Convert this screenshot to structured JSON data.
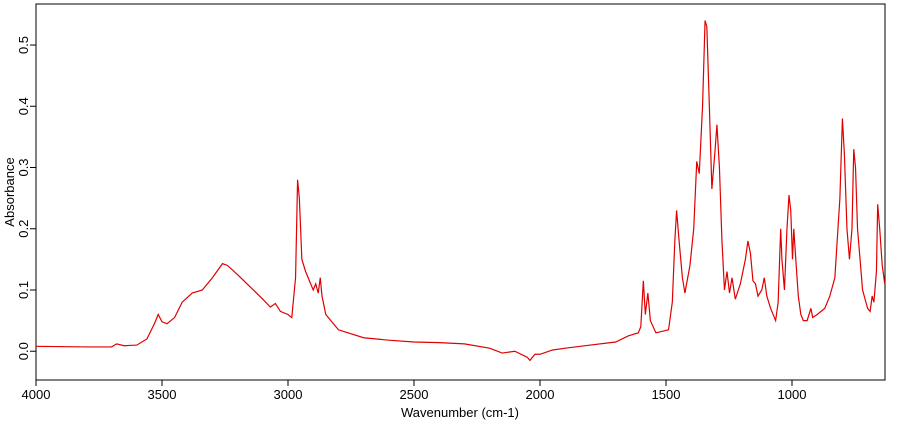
{
  "chart_data": {
    "type": "line",
    "xlabel": "Wavenumber (cm-1)",
    "ylabel": "Absorbance",
    "color": "#e00000",
    "xlim": [
      4000,
      631
    ],
    "ylim": [
      -0.047,
      0.567
    ],
    "xticks": [
      4000,
      3500,
      3000,
      2500,
      2000,
      1500,
      1000
    ],
    "yticks": [
      {
        "value": 0,
        "label": "0.0"
      },
      0.1,
      0.2,
      0.3,
      0.4,
      0.5
    ],
    "x": [
      4000,
      3800,
      3700,
      3680,
      3650,
      3600,
      3560,
      3530,
      3515,
      3500,
      3480,
      3450,
      3420,
      3380,
      3340,
      3300,
      3260,
      3240,
      3200,
      3150,
      3100,
      3070,
      3050,
      3030,
      3000,
      2985,
      2970,
      2962,
      2955,
      2945,
      2930,
      2920,
      2900,
      2890,
      2880,
      2872,
      2865,
      2850,
      2800,
      2700,
      2600,
      2500,
      2400,
      2300,
      2200,
      2150,
      2100,
      2050,
      2040,
      2020,
      2000,
      1950,
      1900,
      1800,
      1700,
      1650,
      1610,
      1600,
      1590,
      1582,
      1572,
      1562,
      1540,
      1490,
      1475,
      1465,
      1458,
      1448,
      1435,
      1425,
      1405,
      1390,
      1378,
      1368,
      1355,
      1345,
      1338,
      1328,
      1318,
      1305,
      1298,
      1288,
      1278,
      1268,
      1258,
      1248,
      1238,
      1225,
      1205,
      1185,
      1175,
      1165,
      1155,
      1145,
      1135,
      1120,
      1110,
      1100,
      1085,
      1065,
      1055,
      1045,
      1040,
      1030,
      1020,
      1012,
      1005,
      998,
      993,
      985,
      975,
      965,
      955,
      940,
      925,
      918,
      900,
      870,
      850,
      830,
      810,
      800,
      792,
      782,
      772,
      762,
      755,
      748,
      740,
      720,
      700,
      690,
      682,
      675,
      665,
      660,
      652,
      642,
      632
    ],
    "values": [
      0.008,
      0.007,
      0.007,
      0.012,
      0.009,
      0.01,
      0.02,
      0.045,
      0.06,
      0.048,
      0.045,
      0.055,
      0.08,
      0.095,
      0.1,
      0.12,
      0.143,
      0.14,
      0.125,
      0.105,
      0.085,
      0.072,
      0.078,
      0.065,
      0.06,
      0.055,
      0.12,
      0.28,
      0.25,
      0.15,
      0.13,
      0.12,
      0.1,
      0.11,
      0.095,
      0.12,
      0.09,
      0.06,
      0.035,
      0.022,
      0.018,
      0.015,
      0.014,
      0.012,
      0.005,
      -0.003,
      0.0,
      -0.01,
      -0.015,
      -0.005,
      -0.005,
      0.002,
      0.005,
      0.01,
      0.015,
      0.025,
      0.03,
      0.04,
      0.115,
      0.06,
      0.095,
      0.05,
      0.03,
      0.035,
      0.08,
      0.18,
      0.23,
      0.18,
      0.12,
      0.095,
      0.14,
      0.2,
      0.31,
      0.29,
      0.4,
      0.54,
      0.53,
      0.4,
      0.265,
      0.33,
      0.37,
      0.3,
      0.18,
      0.1,
      0.13,
      0.095,
      0.12,
      0.085,
      0.11,
      0.15,
      0.18,
      0.16,
      0.115,
      0.11,
      0.09,
      0.1,
      0.12,
      0.09,
      0.07,
      0.05,
      0.08,
      0.2,
      0.15,
      0.1,
      0.2,
      0.255,
      0.23,
      0.15,
      0.2,
      0.15,
      0.09,
      0.06,
      0.05,
      0.05,
      0.07,
      0.055,
      0.06,
      0.07,
      0.09,
      0.12,
      0.25,
      0.38,
      0.32,
      0.2,
      0.15,
      0.2,
      0.33,
      0.3,
      0.2,
      0.1,
      0.07,
      0.065,
      0.09,
      0.08,
      0.13,
      0.24,
      0.2,
      0.14,
      0.11
    ]
  }
}
